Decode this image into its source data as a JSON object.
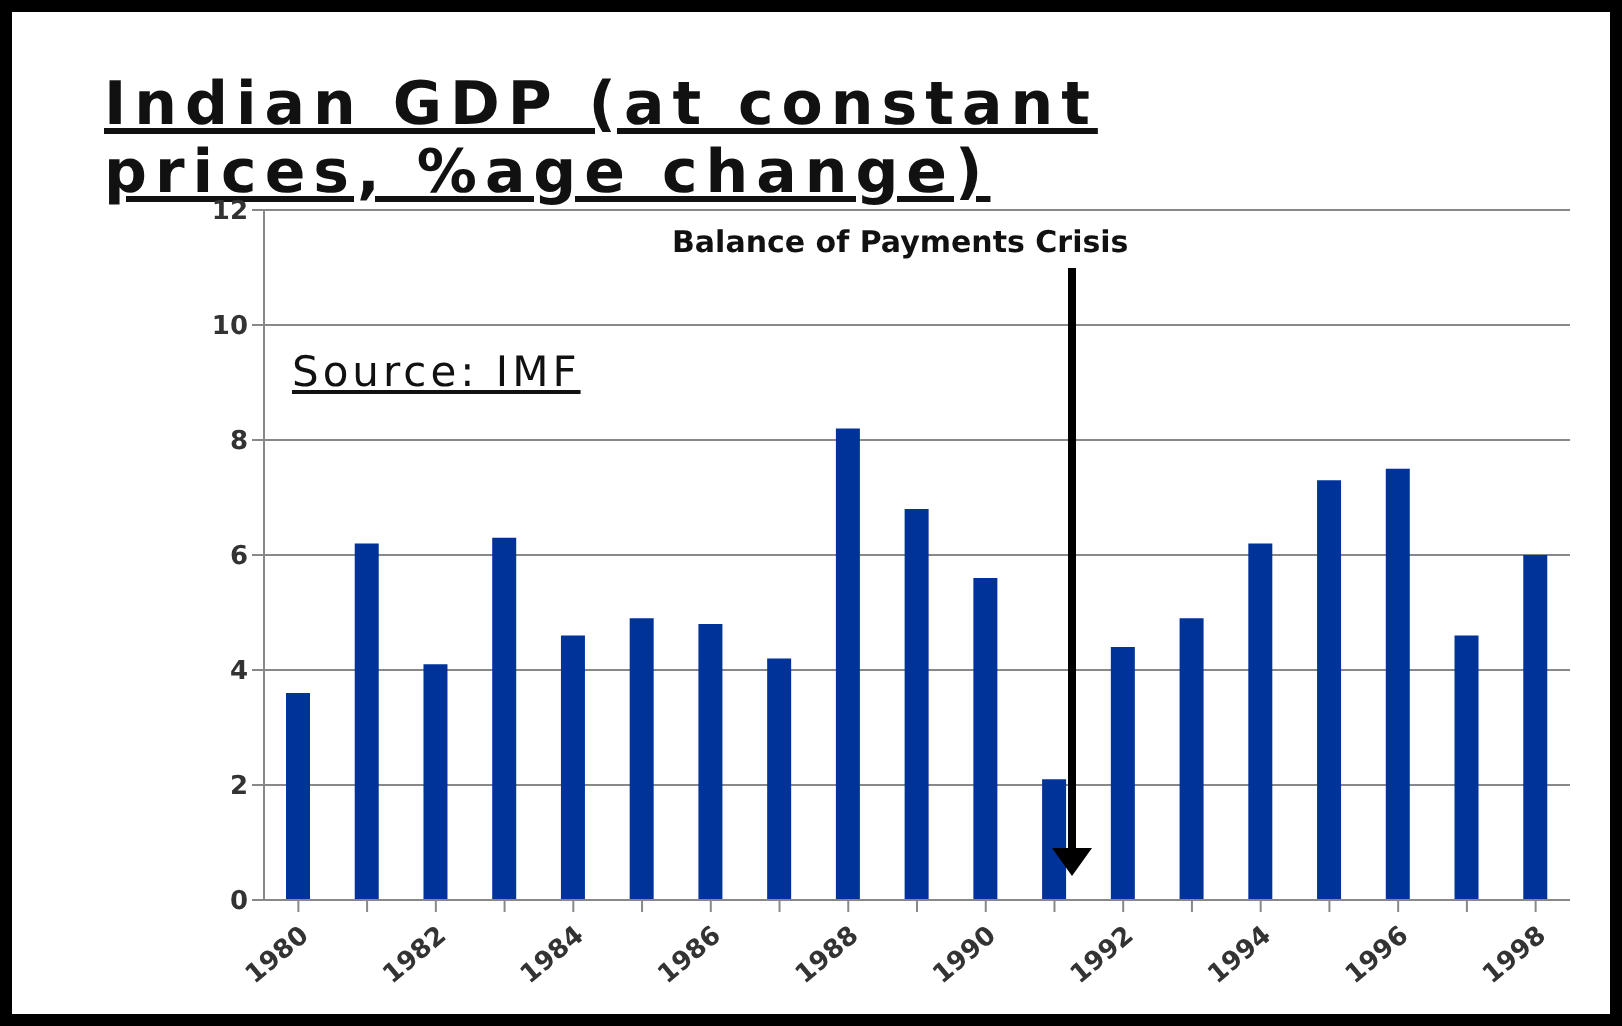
{
  "chart_data": {
    "type": "bar",
    "title": "Indian GDP (at constant prices, %age change)",
    "categories": [
      "1980",
      null,
      "1982",
      null,
      "1984",
      null,
      "1986",
      null,
      "1988",
      null,
      "1990",
      null,
      "1992",
      null,
      "1994",
      null,
      "1996",
      null,
      "1998"
    ],
    "values": [
      3.6,
      6.2,
      4.1,
      6.3,
      4.6,
      4.9,
      4.8,
      4.2,
      8.2,
      6.8,
      5.6,
      2.1,
      4.4,
      4.9,
      6.2,
      7.3,
      7.5,
      4.6,
      6.0
    ],
    "color": "#003399",
    "ylim": [
      0,
      12
    ],
    "yticks": [
      0,
      2,
      4,
      6,
      8,
      10,
      12
    ],
    "grid": "y",
    "annotations": [
      "Balance of Payments Crisis",
      "Source: IMF"
    ]
  }
}
